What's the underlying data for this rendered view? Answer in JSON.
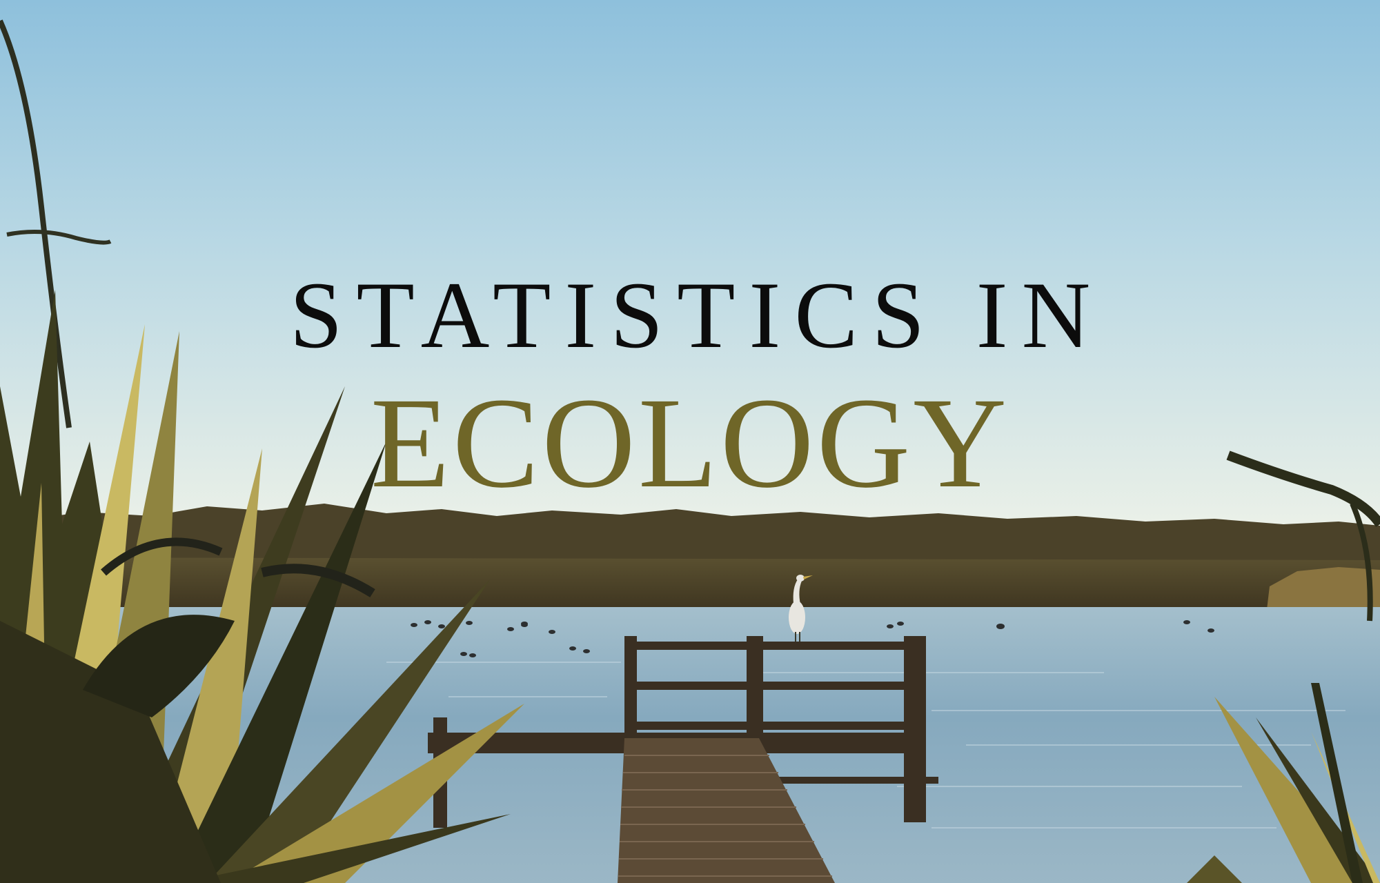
{
  "cover": {
    "title_line_1": "STATISTICS IN",
    "title_line_2": "ECOLOGY"
  },
  "colors": {
    "sky_top": "#8fc0dc",
    "sky_bottom": "#e6f0ea",
    "title_black": "#0c0c0c",
    "title_olive": "#6f6628",
    "water": "#8fb1c4",
    "reeds": "#4a3e26",
    "flax_light": "#c9b962",
    "flax_dark": "#2b2d18"
  },
  "scene_elements": {
    "subject": "lake-jetty-with-heron",
    "foreground": "flax-plants"
  }
}
